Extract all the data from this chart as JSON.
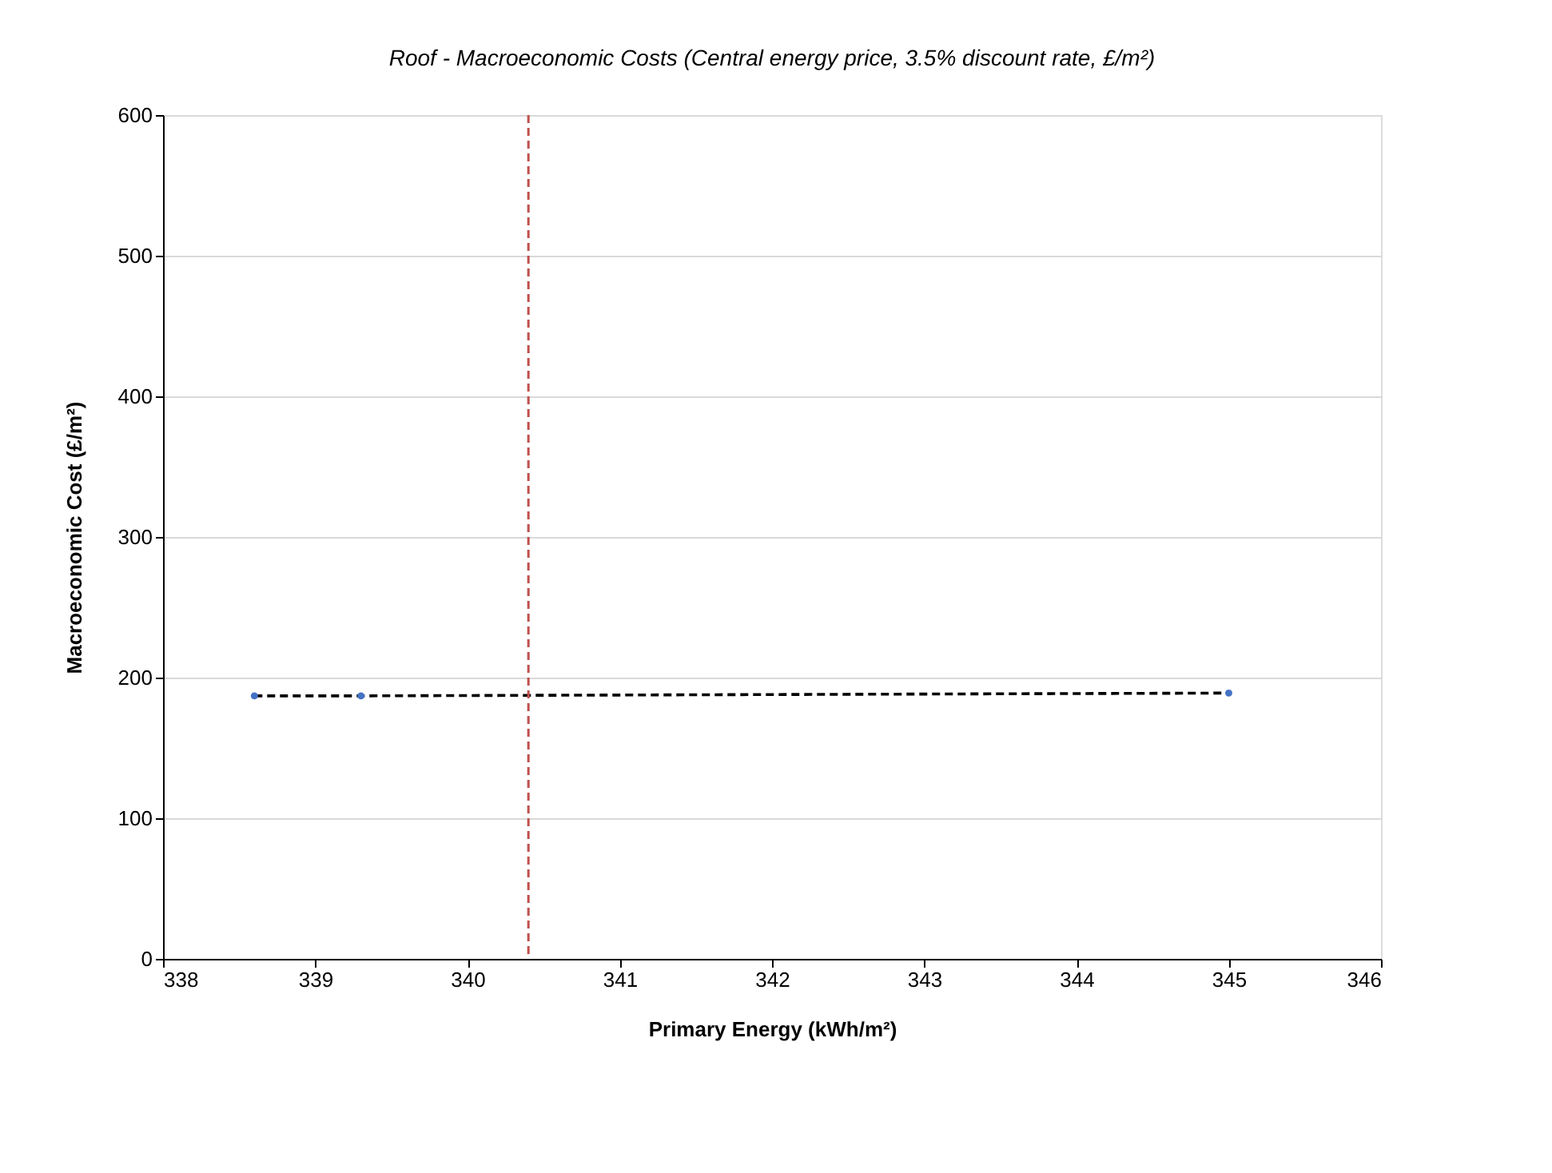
{
  "chart_data": {
    "type": "scatter",
    "title": "Roof - Macroeconomic Costs (Central energy price, 3.5% discount rate, £/m²)",
    "xlabel": "Primary Energy (kWh/m²)",
    "ylabel": "Macroeconomic Cost (£/m²)",
    "series": [
      {
        "type": "line",
        "color": "#000000",
        "line_style": "dashed",
        "marker": "none",
        "x": [
          338.6,
          339.3,
          345.0
        ],
        "values": [
          187,
          187,
          189
        ]
      },
      {
        "color": "#4472c4",
        "marker": "circle",
        "x": [
          338.6,
          339.3,
          345.0
        ],
        "values": [
          187,
          187,
          189
        ]
      }
    ],
    "xlim": [
      338,
      346
    ],
    "xticks": [
      338,
      339,
      340,
      341,
      342,
      343,
      344,
      345,
      346
    ],
    "ylim": [
      0,
      600
    ],
    "yticks": [
      0,
      100,
      200,
      300,
      400,
      500,
      600
    ],
    "ref_lines": [
      {
        "axis": "x",
        "value": 340.4,
        "color": "#c0504d",
        "line_style": "dashed"
      }
    ],
    "grid": "y"
  }
}
